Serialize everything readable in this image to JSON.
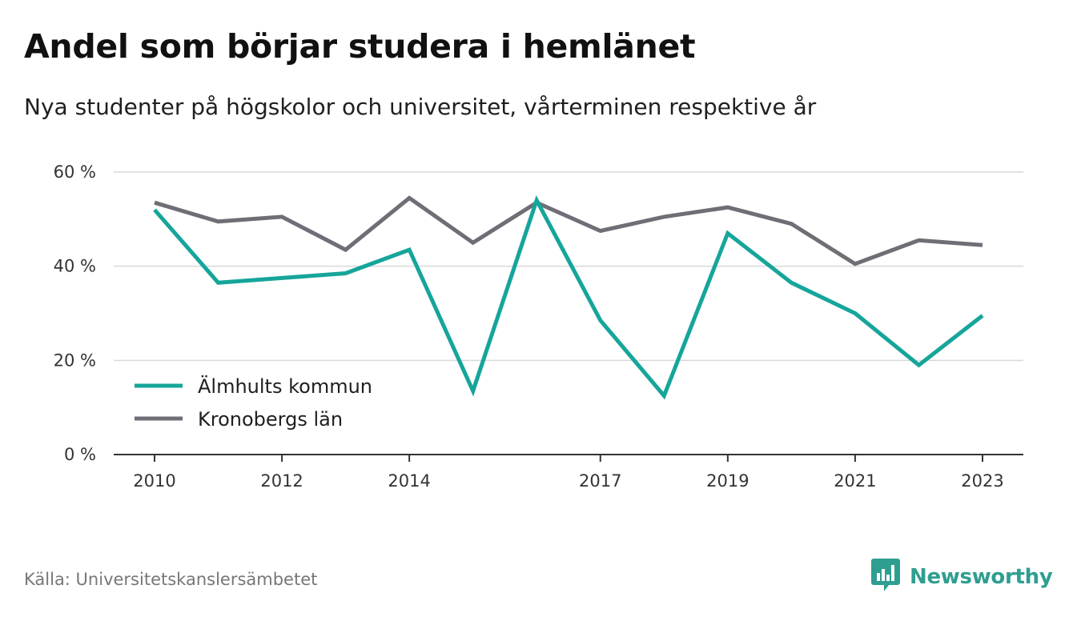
{
  "title": "Andel som börjar studera i hemlänet",
  "subtitle": "Nya studenter på högskolor och universitet, vårterminen respektive år",
  "source": "Källa: Universitetskanslersämbetet",
  "brand": {
    "name": "Newsworthy",
    "icon": "newsworthy-logo-icon",
    "color": "#2e9e90"
  },
  "chart_data": {
    "type": "line",
    "x": [
      2010,
      2011,
      2012,
      2013,
      2014,
      2015,
      2016,
      2017,
      2018,
      2019,
      2020,
      2021,
      2022,
      2023
    ],
    "x_tick_labels": [
      "2010",
      "2012",
      "2014",
      "2017",
      "2019",
      "2021",
      "2023"
    ],
    "x_tick_values": [
      2010,
      2012,
      2014,
      2017,
      2019,
      2021,
      2023
    ],
    "y_ticks": [
      0,
      20,
      40,
      60
    ],
    "y_tick_labels": [
      "0 %",
      "20 %",
      "40 %",
      "60 %"
    ],
    "ylim": [
      0,
      60
    ],
    "grid": true,
    "legend_position": "bottom-left",
    "series": [
      {
        "name": "Älmhults kommun",
        "color": "#16a59a",
        "values": [
          52,
          36.5,
          37.5,
          38.5,
          43.5,
          13.5,
          54,
          28.5,
          12.5,
          47,
          36.5,
          30,
          19,
          29.5
        ]
      },
      {
        "name": "Kronobergs län",
        "color": "#6f6e76",
        "values": [
          53.5,
          49.5,
          50.5,
          43.5,
          54.5,
          45,
          53.5,
          47.5,
          50.5,
          52.5,
          49,
          40.5,
          45.5,
          44.5
        ]
      }
    ]
  }
}
